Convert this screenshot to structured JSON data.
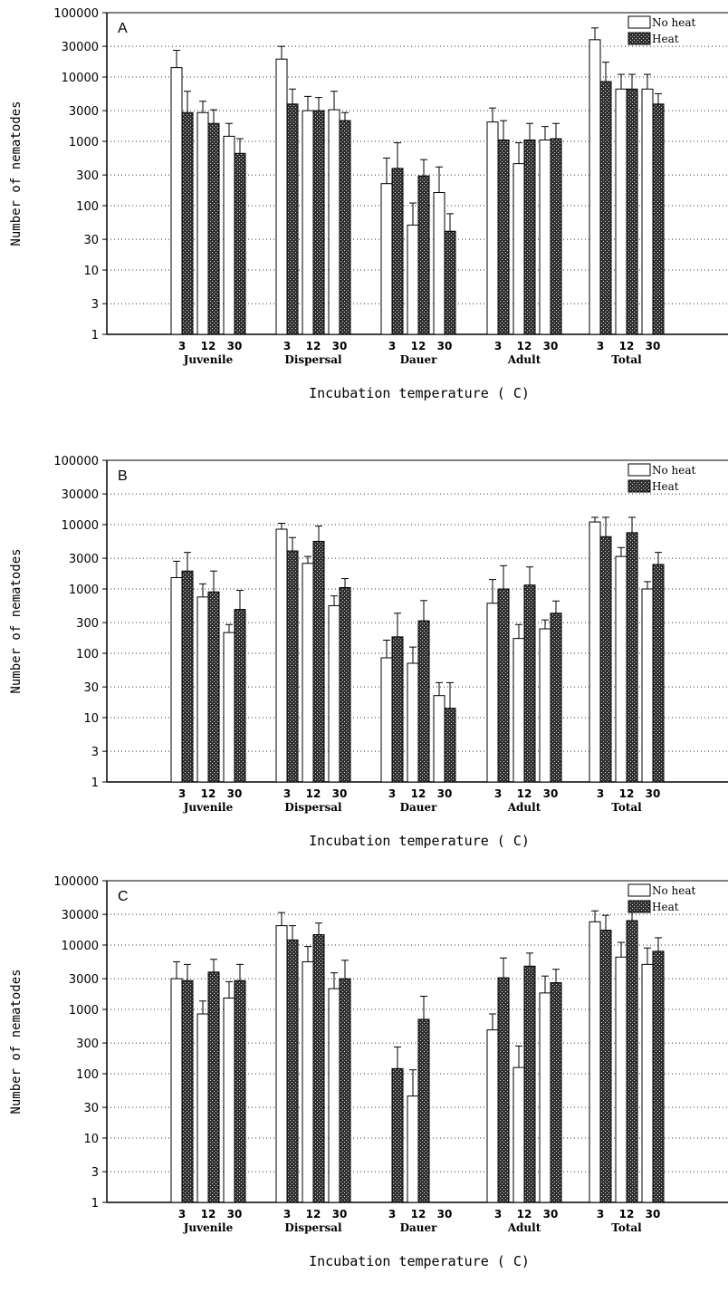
{
  "chart_data": [
    {
      "type": "bar",
      "panel_label": "A",
      "ylabel": "Number of nematodes",
      "xlabel": "Incubation temperature ( C)",
      "y_scale": "log",
      "ylim": [
        1,
        100000
      ],
      "yticks": [
        "1",
        "3",
        "10",
        "30",
        "100",
        "300",
        "1000",
        "3000",
        "10000",
        "30000",
        "100000"
      ],
      "grid": "horizontal dotted",
      "legend_position": "top-right",
      "groups": [
        "Juvenile",
        "Dispersal",
        "Dauer",
        "Adult",
        "Total"
      ],
      "temperatures": [
        "3",
        "12",
        "30"
      ],
      "series": [
        {
          "name": "No heat",
          "values": [
            [
              14000,
              2800,
              1200
            ],
            [
              19000,
              3000,
              3100
            ],
            [
              220,
              50,
              160
            ],
            [
              2000,
              450,
              1050
            ],
            [
              38000,
              6500,
              6500
            ]
          ],
          "errors": [
            [
              26000,
              4200,
              1900
            ],
            [
              30000,
              5000,
              6000
            ],
            [
              550,
              110,
              400
            ],
            [
              3300,
              950,
              1700
            ],
            [
              58000,
              11000,
              11000
            ]
          ]
        },
        {
          "name": "Heat",
          "values": [
            [
              2800,
              1900,
              650
            ],
            [
              3800,
              3000,
              2100
            ],
            [
              380,
              290,
              40
            ],
            [
              1050,
              1050,
              1100
            ],
            [
              8500,
              6500,
              3800
            ]
          ],
          "errors": [
            [
              6000,
              3100,
              1100
            ],
            [
              6500,
              4800,
              2800
            ],
            [
              950,
              520,
              75
            ],
            [
              2100,
              1900,
              1900
            ],
            [
              17000,
              11000,
              5500
            ]
          ]
        }
      ]
    },
    {
      "type": "bar",
      "panel_label": "B",
      "ylabel": "Number of nematodes",
      "xlabel": "Incubation temperature ( C)",
      "y_scale": "log",
      "ylim": [
        1,
        100000
      ],
      "yticks": [
        "1",
        "3",
        "10",
        "30",
        "100",
        "300",
        "1000",
        "3000",
        "10000",
        "30000",
        "100000"
      ],
      "grid": "horizontal dotted",
      "legend_position": "top-right",
      "groups": [
        "Juvenile",
        "Dispersal",
        "Dauer",
        "Adult",
        "Total"
      ],
      "temperatures": [
        "3",
        "12",
        "30"
      ],
      "series": [
        {
          "name": "No heat",
          "values": [
            [
              1500,
              750,
              210
            ],
            [
              8500,
              2500,
              550
            ],
            [
              85,
              70,
              22
            ],
            [
              600,
              170,
              240
            ],
            [
              11000,
              3200,
              1000
            ]
          ],
          "errors": [
            [
              2700,
              1200,
              280
            ],
            [
              10500,
              3200,
              780
            ],
            [
              160,
              125,
              35
            ],
            [
              1400,
              280,
              330
            ],
            [
              13000,
              4400,
              1300
            ]
          ]
        },
        {
          "name": "Heat",
          "values": [
            [
              1900,
              900,
              480
            ],
            [
              3900,
              5500,
              1050
            ],
            [
              180,
              320,
              14
            ],
            [
              1000,
              1150,
              420
            ],
            [
              6500,
              7500,
              2400
            ]
          ],
          "errors": [
            [
              3700,
              1900,
              950
            ],
            [
              6300,
              9500,
              1450
            ],
            [
              420,
              660,
              35
            ],
            [
              2300,
              2200,
              650
            ],
            [
              13000,
              13000,
              3700
            ]
          ]
        }
      ]
    },
    {
      "type": "bar",
      "panel_label": "C",
      "ylabel": "Number of nematodes",
      "xlabel": "Incubation temperature ( C)",
      "y_scale": "log",
      "ylim": [
        1,
        100000
      ],
      "yticks": [
        "1",
        "3",
        "10",
        "30",
        "100",
        "300",
        "1000",
        "3000",
        "10000",
        "30000",
        "100000"
      ],
      "grid": "horizontal dotted",
      "legend_position": "top-right",
      "groups": [
        "Juvenile",
        "Dispersal",
        "Dauer",
        "Adult",
        "Total"
      ],
      "temperatures": [
        "3",
        "12",
        "30"
      ],
      "series": [
        {
          "name": "No heat",
          "values": [
            [
              3000,
              850,
              1500
            ],
            [
              20000,
              5500,
              2100
            ],
            [
              null,
              45,
              null
            ],
            [
              480,
              125,
              1800
            ],
            [
              23000,
              6500,
              5000
            ]
          ],
          "errors": [
            [
              5500,
              1350,
              2700
            ],
            [
              32000,
              9500,
              3700
            ],
            [
              null,
              115,
              null
            ],
            [
              850,
              270,
              3300
            ],
            [
              34000,
              11000,
              9000
            ]
          ]
        },
        {
          "name": "Heat",
          "values": [
            [
              2800,
              3800,
              2800
            ],
            [
              12000,
              14500,
              3000
            ],
            [
              120,
              700,
              null
            ],
            [
              3100,
              4700,
              2600
            ],
            [
              17000,
              24000,
              8000
            ]
          ],
          "errors": [
            [
              5000,
              6000,
              5000
            ],
            [
              20000,
              22000,
              5800
            ],
            [
              260,
              1600,
              null
            ],
            [
              6300,
              7500,
              4200
            ],
            [
              29000,
              33000,
              13000
            ]
          ]
        }
      ]
    }
  ],
  "colors": {
    "axis": "#000000",
    "no_heat_fill": "#ffffff",
    "heat_fill": "#3a3a3a",
    "grid": "#333333"
  },
  "legend_icons": [
    "open-box-icon",
    "crosshatch-box-icon"
  ]
}
